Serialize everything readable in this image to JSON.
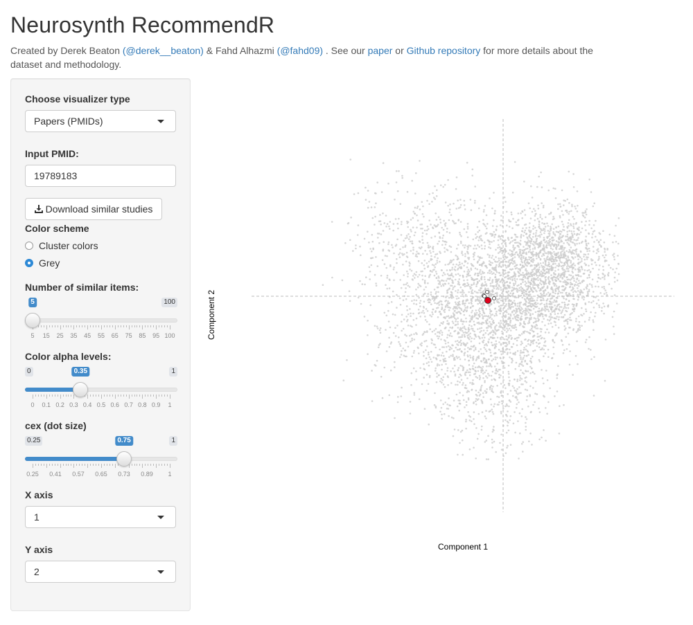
{
  "page": {
    "title": "Neurosynth RecommendR",
    "intro": {
      "t1": "Created by Derek Beaton ",
      "link1": "(@derek__beaton)",
      "t2": " & Fahd Alhazmi ",
      "link2": "(@fahd09)",
      "t3": " . See our ",
      "link3": "paper",
      "t4": " or ",
      "link4": "Github repository",
      "t5": " for more details about the dataset and methodology."
    }
  },
  "sidebar": {
    "visualizer": {
      "label": "Choose visualizer type",
      "value": "Papers (PMIDs)"
    },
    "pmid": {
      "label": "Input PMID:",
      "value": "19789183"
    },
    "download": {
      "icon": "download-icon",
      "label": "Download similar studies"
    },
    "color_scheme": {
      "label": "Color scheme",
      "options": [
        "Cluster colors",
        "Grey"
      ],
      "selected": "Grey"
    },
    "similar": {
      "label": "Number of similar items:",
      "min": "5",
      "max": "100",
      "value": "5",
      "fraction": 0,
      "grid": [
        "5",
        "15",
        "25",
        "35",
        "45",
        "55",
        "65",
        "75",
        "85",
        "95",
        "100"
      ]
    },
    "alpha": {
      "label": "Color alpha levels:",
      "min": "0",
      "max": "1",
      "value": "0.35",
      "fraction": 0.35,
      "grid": [
        "0",
        "0.1",
        "0.2",
        "0.3",
        "0.4",
        "0.5",
        "0.6",
        "0.7",
        "0.8",
        "0.9",
        "1"
      ]
    },
    "cex": {
      "label": "cex (dot size)",
      "min": "0.25",
      "max": "1",
      "value": "0.75",
      "fraction": 0.667,
      "grid": [
        "0.25",
        "0.41",
        "0.57",
        "0.65",
        "0.73",
        "0.89",
        "1"
      ]
    },
    "x_axis": {
      "label": "X axis",
      "value": "1"
    },
    "y_axis": {
      "label": "Y axis",
      "value": "2"
    }
  },
  "plot": {
    "xlabel": "Component 1",
    "ylabel": "Component 2",
    "point_color": "#cccccc",
    "highlight_color": "#e0001b",
    "neighbor_stroke": "#333333"
  }
}
